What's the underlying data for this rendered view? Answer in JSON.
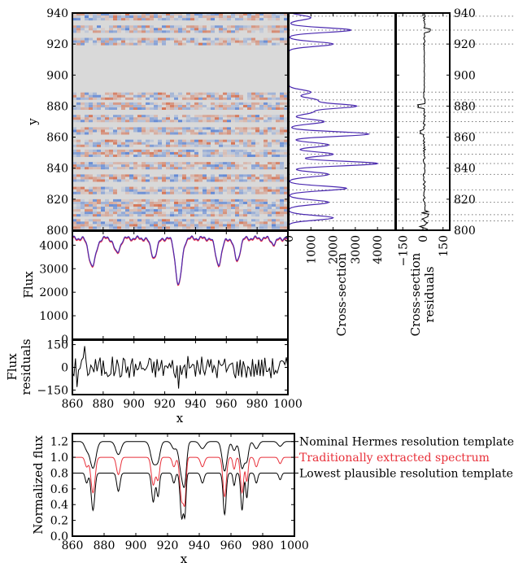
{
  "chart_data": [
    {
      "id": "residual-image",
      "type": "heatmap",
      "ylabel": "y",
      "xlim": [
        860,
        1000
      ],
      "ylim": [
        800,
        940
      ],
      "yticks": [
        800,
        820,
        840,
        860,
        880,
        900,
        920,
        940
      ],
      "masked_y_range": [
        890,
        916
      ],
      "row_stripes_y": [
        804,
        812,
        818,
        826,
        834,
        842,
        849,
        856,
        864,
        872,
        880,
        886,
        922,
        930,
        937
      ],
      "colormap": [
        "#3b6fd4",
        "#d9d9d9",
        "#d4532a"
      ]
    },
    {
      "id": "cross-section",
      "type": "line",
      "xlabel": "Cross-section",
      "xticks": [
        0,
        1000,
        2000,
        3000,
        4000
      ],
      "xlim": [
        0,
        4800
      ],
      "ylim": [
        800,
        940
      ],
      "color": "#4b2ab0",
      "peaks": [
        {
          "y": 808,
          "v": 2000
        },
        {
          "y": 818,
          "v": 1800
        },
        {
          "y": 827,
          "v": 2600
        },
        {
          "y": 836,
          "v": 1800
        },
        {
          "y": 843,
          "v": 4000
        },
        {
          "y": 849,
          "v": 2000
        },
        {
          "y": 855,
          "v": 1800
        },
        {
          "y": 862,
          "v": 3600
        },
        {
          "y": 870,
          "v": 1600
        },
        {
          "y": 876,
          "v": 1000
        },
        {
          "y": 880,
          "v": 3000
        },
        {
          "y": 884,
          "v": 1200
        },
        {
          "y": 889,
          "v": 1000
        },
        {
          "y": 920,
          "v": 2000
        },
        {
          "y": 929,
          "v": 2800
        },
        {
          "y": 937,
          "v": 1000
        }
      ],
      "dotted_y": [
        806,
        810,
        818,
        826,
        836,
        843,
        849,
        855,
        863,
        870,
        876,
        880,
        884,
        889,
        920,
        929,
        938
      ]
    },
    {
      "id": "cross-section-residuals",
      "type": "line",
      "xlabel_lines": [
        "Cross-section",
        "residuals"
      ],
      "xticks": [
        -150,
        0,
        150
      ],
      "xlim": [
        -200,
        200
      ],
      "ylim": [
        800,
        940
      ],
      "color": "#000000"
    },
    {
      "id": "flux",
      "type": "line",
      "ylabel": "Flux",
      "xlim": [
        860,
        1000
      ],
      "ylim": [
        0,
        4600
      ],
      "yticks": [
        0,
        1000,
        2000,
        3000,
        4000
      ],
      "baseline": 4300,
      "series_colors": [
        "#e8304a",
        "#4b2ab0"
      ],
      "dips": [
        {
          "x": 873,
          "depth": 1200,
          "w": 2.2
        },
        {
          "x": 889,
          "depth": 650,
          "w": 1.8
        },
        {
          "x": 913,
          "depth": 800,
          "w": 2.0
        },
        {
          "x": 929,
          "depth": 2000,
          "w": 2.0
        },
        {
          "x": 955,
          "depth": 1100,
          "w": 2.0
        },
        {
          "x": 967,
          "depth": 950,
          "w": 1.8
        },
        {
          "x": 991,
          "depth": 250,
          "w": 1.5
        }
      ]
    },
    {
      "id": "flux-residuals",
      "type": "line",
      "ylabel_lines": [
        "Flux",
        "residuals"
      ],
      "xlabel": "x",
      "xlim": [
        860,
        1000
      ],
      "ylim": [
        -180,
        180
      ],
      "yticks": [
        -150,
        0,
        150
      ],
      "xticks": [
        860,
        880,
        900,
        920,
        940,
        960,
        980,
        1000
      ],
      "color": "#000000"
    },
    {
      "id": "normalized-flux",
      "type": "line",
      "ylabel": "Normalized flux",
      "xlabel": "x",
      "xlim": [
        860,
        1000
      ],
      "ylim": [
        0.0,
        1.3
      ],
      "yticks": [
        0.0,
        0.2,
        0.4,
        0.6,
        0.8,
        1.0,
        1.2
      ],
      "xticks": [
        860,
        880,
        900,
        920,
        940,
        960,
        980,
        1000
      ],
      "series": [
        {
          "name": "Nominal Hermes resolution template",
          "color": "#000000",
          "offset": 1.2,
          "scale": 0.75
        },
        {
          "name": "Traditionally extracted spectrum",
          "color": "#e8303a",
          "offset": 1.0,
          "scale": 1.0
        },
        {
          "name": "Lowest plausible resolution template",
          "color": "#000000",
          "offset": 0.8,
          "scale": 1.05
        }
      ],
      "lines": [
        {
          "x": 869,
          "d": 0.12,
          "w": 1.0
        },
        {
          "x": 873,
          "d": 0.45,
          "w": 1.3
        },
        {
          "x": 889,
          "d": 0.22,
          "w": 1.2
        },
        {
          "x": 911,
          "d": 0.35,
          "w": 1.2
        },
        {
          "x": 914,
          "d": 0.28,
          "w": 1.0
        },
        {
          "x": 924,
          "d": 0.12,
          "w": 1.0
        },
        {
          "x": 929,
          "d": 0.55,
          "w": 1.2
        },
        {
          "x": 931,
          "d": 0.45,
          "w": 0.8
        },
        {
          "x": 942,
          "d": 0.12,
          "w": 1.2
        },
        {
          "x": 956,
          "d": 0.5,
          "w": 1.1
        },
        {
          "x": 962,
          "d": 0.15,
          "w": 0.8
        },
        {
          "x": 967,
          "d": 0.45,
          "w": 1.0
        },
        {
          "x": 970,
          "d": 0.3,
          "w": 0.8
        },
        {
          "x": 976,
          "d": 0.12,
          "w": 1.0
        },
        {
          "x": 991,
          "d": 0.08,
          "w": 1.0
        }
      ]
    }
  ]
}
